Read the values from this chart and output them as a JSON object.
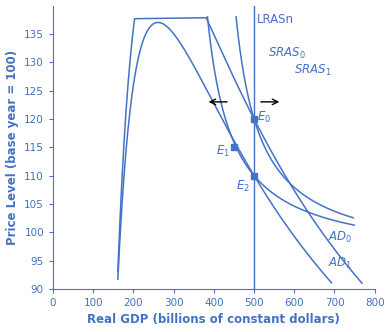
{
  "color": "#4472c4",
  "arrow_color": "#000000",
  "bg_color": "#ffffff",
  "xlim": [
    0,
    800
  ],
  "ylim": [
    90,
    140
  ],
  "xticks": [
    0,
    100,
    200,
    300,
    400,
    500,
    600,
    700,
    800
  ],
  "yticks": [
    90,
    95,
    100,
    105,
    110,
    115,
    120,
    125,
    130,
    135
  ],
  "xlabel": "Real GDP (billions of constant dollars)",
  "ylabel": "Price Level (base year = 100)",
  "lrasn_x": 500,
  "E0": [
    500,
    120
  ],
  "E1": [
    450,
    115
  ],
  "E2": [
    500,
    110
  ],
  "font_size_labels": 8.5,
  "font_size_axis_labels": 8.5,
  "figsize": [
    3.9,
    3.32
  ],
  "dpi": 100
}
